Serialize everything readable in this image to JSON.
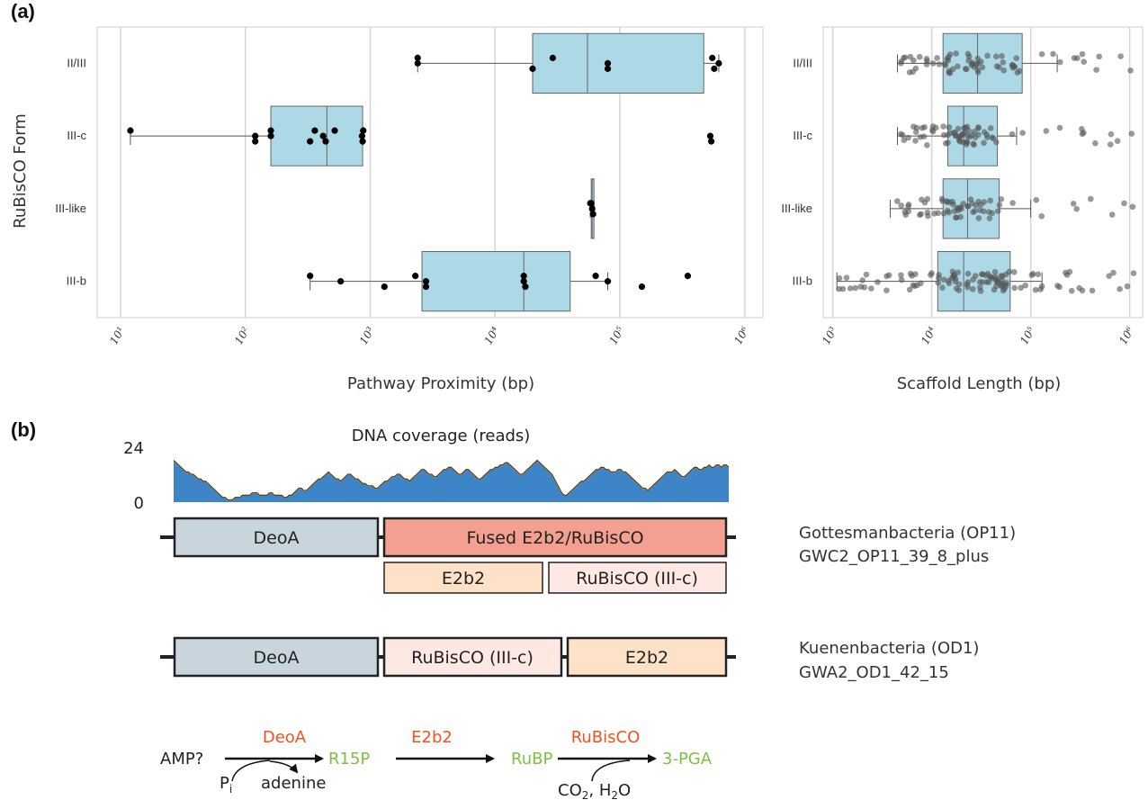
{
  "panel_a_label": "(a)",
  "panel_b_label": "(b)",
  "chart_data": [
    {
      "type": "box",
      "ylabel": "RuBisCO Form",
      "xlabel": "Pathway Proximity (bp)",
      "xscale": "log",
      "xlim": [
        6.5,
        1400000
      ],
      "xticks": [
        10,
        100,
        1000,
        10000,
        100000,
        1000000
      ],
      "xtick_labels": [
        "10¹",
        "10²",
        "10³",
        "10⁴",
        "10⁵",
        "10⁶"
      ],
      "grid": "vertical",
      "categories": [
        "II/III",
        "III-c",
        "III-like",
        "III-b"
      ],
      "boxes": [
        {
          "q1": 20000,
          "median": 55000,
          "q3": 470000,
          "whisker_low": 2400,
          "whisker_high": 620000
        },
        {
          "q1": 160,
          "median": 450,
          "q3": 870,
          "whisker_low": 12,
          "whisker_high": 880
        },
        {
          "q1": 59000,
          "median": 60000,
          "q3": 61000,
          "whisker_low": 58000,
          "whisker_high": 62000
        },
        {
          "q1": 2600,
          "median": 17000,
          "q3": 40000,
          "whisker_low": 330,
          "whisker_high": 80000
        }
      ],
      "points": [
        [
          2400,
          2400,
          20000,
          29000,
          80000,
          80000,
          550000,
          620000,
          570000
        ],
        [
          12,
          120,
          120,
          160,
          160,
          330,
          360,
          420,
          440,
          520,
          860,
          870,
          880,
          530000,
          540000
        ],
        [
          58000,
          60000,
          61000,
          59000
        ],
        [
          330,
          580,
          1300,
          2300,
          2800,
          2800,
          17000,
          17000,
          17500,
          64000,
          80000,
          150000,
          350000
        ]
      ],
      "point_color": "#000000",
      "box_color": "#add8e6"
    },
    {
      "type": "box",
      "xlabel": "Scaffold Length (bp)",
      "xscale": "log",
      "xlim": [
        800,
        1350000
      ],
      "xticks": [
        1000,
        10000,
        100000,
        1000000
      ],
      "xtick_labels": [
        "10³",
        "10⁴",
        "10⁵",
        "10⁶"
      ],
      "grid": "vertical",
      "categories": [
        "II/III",
        "III-c",
        "III-like",
        "III-b"
      ],
      "boxes": [
        {
          "q1": 13000,
          "median": 29000,
          "q3": 82000,
          "whisker_low": 4500,
          "whisker_high": 185000
        },
        {
          "q1": 14500,
          "median": 21000,
          "q3": 46000,
          "whisker_low": 4500,
          "whisker_high": 72000
        },
        {
          "q1": 13000,
          "median": 23000,
          "q3": 48000,
          "whisker_low": 3800,
          "whisker_high": 100000
        },
        {
          "q1": 11500,
          "median": 21000,
          "q3": 62000,
          "whisker_low": 1100,
          "whisker_high": 130000
        }
      ],
      "points_generated_count": [
        70,
        75,
        65,
        110
      ],
      "point_color": "#555555",
      "box_color": "#add8e6"
    },
    {
      "type": "area",
      "title": "DNA coverage (reads)",
      "ylim": [
        0,
        24
      ],
      "ytick_labels": [
        "24",
        "0"
      ],
      "values": [
        18,
        17,
        16,
        15,
        14,
        13,
        13,
        12,
        12,
        11,
        10,
        10,
        9,
        9,
        8,
        7,
        6,
        5,
        4,
        3,
        2,
        2,
        1,
        1,
        1,
        2,
        2,
        2,
        3,
        3,
        3,
        3,
        4,
        4,
        4,
        3,
        3,
        3,
        3,
        4,
        4,
        3,
        3,
        3,
        3,
        2,
        2,
        3,
        3,
        4,
        5,
        6,
        6,
        5,
        5,
        6,
        7,
        8,
        9,
        10,
        10,
        11,
        12,
        13,
        12,
        11,
        10,
        10,
        9,
        10,
        11,
        12,
        12,
        11,
        10,
        10,
        9,
        8,
        8,
        7,
        7,
        7,
        6,
        6,
        7,
        8,
        9,
        9,
        10,
        11,
        11,
        12,
        12,
        11,
        10,
        10,
        9,
        10,
        11,
        12,
        13,
        14,
        14,
        13,
        12,
        12,
        11,
        11,
        12,
        13,
        14,
        14,
        15,
        15,
        14,
        13,
        12,
        12,
        13,
        14,
        14,
        13,
        12,
        11,
        10,
        10,
        11,
        12,
        13,
        14,
        14,
        15,
        15,
        16,
        16,
        17,
        17,
        16,
        15,
        14,
        13,
        12,
        12,
        13,
        14,
        15,
        16,
        17,
        18,
        17,
        16,
        15,
        14,
        13,
        12,
        10,
        8,
        6,
        4,
        3,
        3,
        4,
        5,
        6,
        7,
        8,
        9,
        9,
        10,
        11,
        12,
        13,
        14,
        14,
        15,
        15,
        14,
        14,
        13,
        13,
        13,
        14,
        14,
        13,
        13,
        12,
        11,
        10,
        9,
        8,
        7,
        6,
        6,
        5,
        6,
        7,
        8,
        9,
        10,
        11,
        12,
        13,
        13,
        13,
        14,
        13,
        12,
        11,
        11,
        12,
        13,
        14,
        15,
        15,
        14,
        14,
        15,
        15,
        16,
        15,
        15,
        16,
        16,
        15,
        16,
        16,
        15
      ],
      "fill_color": "#3d85c6",
      "line_color": "#e6a23c"
    }
  ],
  "genome_maps": [
    {
      "organism": "Gottesmanbacteria (OP11)",
      "scaffold": "GWC2_OP11_39_8_plus",
      "genes": [
        "DeoA",
        "Fused E2b2/RuBisCO"
      ],
      "subgenes": [
        "E2b2",
        "RuBisCO (III-c)"
      ]
    },
    {
      "organism": "Kuenenbacteria (OD1)",
      "scaffold": "GWA2_OD1_42_15",
      "genes": [
        "DeoA",
        "RuBisCO (III-c)",
        "E2b2"
      ]
    }
  ],
  "pathway": {
    "substrate": "AMP?",
    "enzymes": [
      "DeoA",
      "E2b2",
      "RuBisCO"
    ],
    "metabolites": [
      "R15P",
      "RuBP",
      "3-PGA"
    ],
    "cofactor_in_1": "P",
    "cofactor_in_1_sub": "i",
    "cofactor_out_1": "adenine",
    "cofactor_in_3": "CO",
    "cofactor_in_3_sub": "2",
    "cofactor_in_3_rest": ", H",
    "cofactor_in_3_sub2": "2",
    "cofactor_in_3_end": "O"
  },
  "colors": {
    "box_fill": "#add8e6",
    "deoa": "#c9d5dc",
    "fused": "#f4a091",
    "e2b2": "#fde2c7",
    "rubisco": "#fde8e4",
    "enzyme_text": "#f4511e",
    "metabolite_text": "#7cc142"
  }
}
